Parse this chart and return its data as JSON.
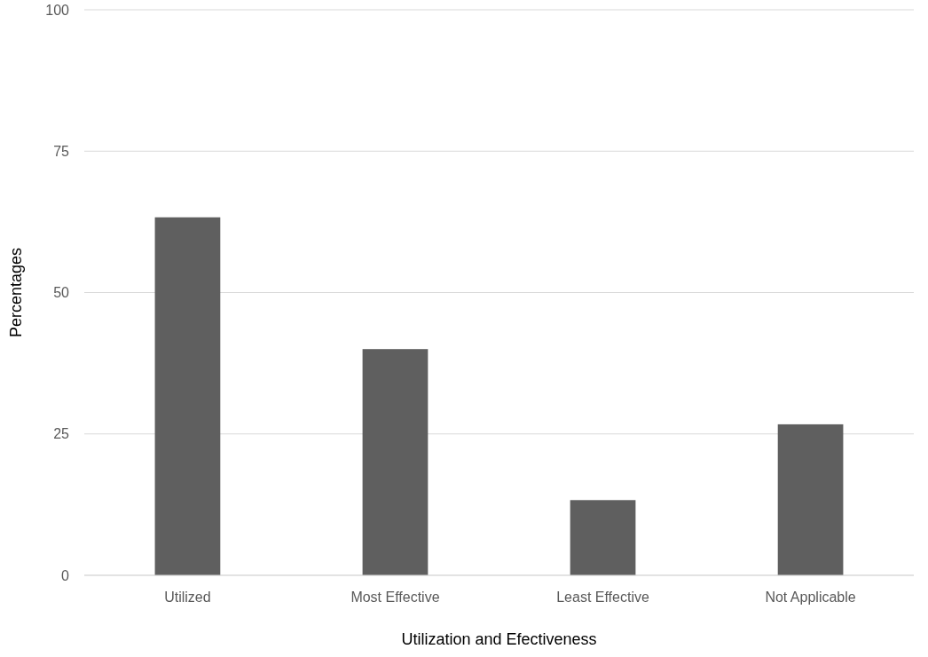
{
  "chart_data": {
    "type": "bar",
    "xlabel": "Utilization and Efectiveness",
    "ylabel": "Percentages",
    "categories": [
      "Utilized",
      "Most Effective",
      "Least Effective",
      "Not Applicable"
    ],
    "values": [
      63.3,
      40,
      13.3,
      26.7
    ],
    "color": "#5f5f5f",
    "ylim": [
      0,
      100
    ],
    "yticks": [
      0,
      25,
      50,
      75,
      100
    ],
    "grid": "y"
  }
}
